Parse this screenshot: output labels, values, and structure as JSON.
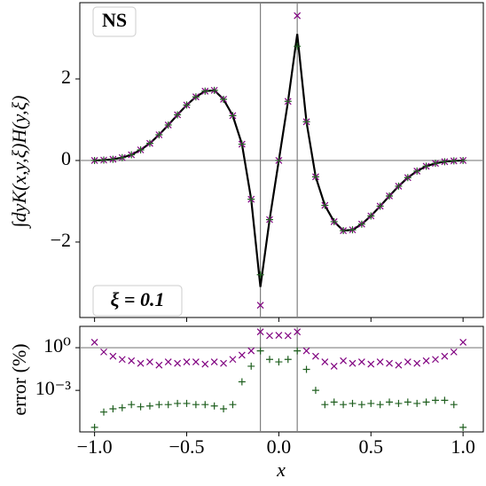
{
  "chart_data": [
    {
      "type": "line",
      "ylabel": "∫dyK(x,y,ξ)H(y,ξ)",
      "annotations": [
        "NS",
        "ξ = 0.1"
      ],
      "x": [
        -1,
        -0.95,
        -0.9,
        -0.85,
        -0.8,
        -0.75,
        -0.7,
        -0.65,
        -0.6,
        -0.55,
        -0.5,
        -0.45,
        -0.4,
        -0.35,
        -0.3,
        -0.25,
        -0.2,
        -0.15,
        -0.1,
        -0.05,
        0,
        0.05,
        0.1,
        0.15,
        0.2,
        0.25,
        0.3,
        0.35,
        0.4,
        0.45,
        0.5,
        0.55,
        0.6,
        0.65,
        0.7,
        0.75,
        0.8,
        0.85,
        0.9,
        0.95,
        1
      ],
      "series": [
        {
          "marker": "line",
          "color": "#000000",
          "values": [
            0,
            0.01,
            0.03,
            0.07,
            0.14,
            0.26,
            0.42,
            0.63,
            0.87,
            1.12,
            1.36,
            1.56,
            1.7,
            1.72,
            1.5,
            1.1,
            0.4,
            -0.95,
            -3.1,
            -1.45,
            0,
            1.45,
            3.1,
            0.95,
            -0.4,
            -1.1,
            -1.5,
            -1.72,
            -1.7,
            -1.56,
            -1.36,
            -1.12,
            -0.87,
            -0.63,
            -0.42,
            -0.26,
            -0.14,
            -0.07,
            -0.03,
            -0.01,
            0
          ]
        },
        {
          "marker": "x",
          "color": "#800080",
          "values": [
            0,
            0.01,
            0.03,
            0.07,
            0.14,
            0.26,
            0.42,
            0.63,
            0.87,
            1.12,
            1.36,
            1.56,
            1.7,
            1.72,
            1.5,
            1.1,
            0.4,
            -0.95,
            -3.55,
            -1.45,
            0,
            1.45,
            3.55,
            0.95,
            -0.4,
            -1.1,
            -1.5,
            -1.72,
            -1.7,
            -1.56,
            -1.36,
            -1.12,
            -0.87,
            -0.63,
            -0.42,
            -0.26,
            -0.14,
            -0.07,
            -0.03,
            -0.01,
            0
          ]
        },
        {
          "marker": "+",
          "color": "#1f5f1f",
          "values": [
            0,
            0.01,
            0.03,
            0.07,
            0.14,
            0.26,
            0.42,
            0.63,
            0.87,
            1.12,
            1.36,
            1.56,
            1.7,
            1.72,
            1.5,
            1.1,
            0.4,
            -0.95,
            -2.8,
            -1.45,
            0,
            1.45,
            2.8,
            0.95,
            -0.4,
            -1.1,
            -1.5,
            -1.72,
            -1.7,
            -1.56,
            -1.36,
            -1.12,
            -0.87,
            -0.63,
            -0.42,
            -0.26,
            -0.14,
            -0.07,
            -0.03,
            -0.01,
            0
          ]
        }
      ],
      "xlim": [
        -1.08,
        1.11
      ],
      "ylim": [
        -3.85,
        3.87
      ],
      "yticks": [
        {
          "value": -2,
          "label": "−2"
        },
        0,
        2
      ],
      "hlines": [
        0
      ],
      "vlines": [
        -0.1,
        0.1
      ],
      "ref_color": "#808080"
    },
    {
      "type": "scatter",
      "xlabel": "x",
      "ylabel": "error (%)",
      "log_y": true,
      "x": [
        -1,
        -0.95,
        -0.9,
        -0.85,
        -0.8,
        -0.75,
        -0.7,
        -0.65,
        -0.6,
        -0.55,
        -0.5,
        -0.45,
        -0.4,
        -0.35,
        -0.3,
        -0.25,
        -0.2,
        -0.15,
        -0.1,
        -0.05,
        0,
        0.05,
        0.1,
        0.15,
        0.2,
        0.25,
        0.3,
        0.35,
        0.4,
        0.45,
        0.5,
        0.55,
        0.6,
        0.65,
        0.7,
        0.75,
        0.8,
        0.85,
        0.9,
        0.95,
        1
      ],
      "series": [
        {
          "marker": "x",
          "color": "#800080",
          "values": [
            2.4,
            0.5,
            0.25,
            0.15,
            0.12,
            0.08,
            0.1,
            0.06,
            0.1,
            0.08,
            0.1,
            0.1,
            0.07,
            0.1,
            0.08,
            0.15,
            0.3,
            0.6,
            13,
            7,
            7.5,
            7,
            13,
            0.6,
            0.25,
            0.1,
            0.05,
            0.12,
            0.08,
            0.1,
            0.07,
            0.1,
            0.08,
            0.06,
            0.1,
            0.08,
            0.12,
            0.15,
            0.25,
            0.5,
            2.4
          ]
        },
        {
          "marker": "+",
          "color": "#1f5f1f",
          "values": [
            2.5e-06,
            3e-05,
            5e-05,
            6e-05,
            0.0001,
            7e-05,
            8e-05,
            0.0001,
            0.0001,
            0.00012,
            0.00012,
            0.0001,
            0.0001,
            8e-05,
            5e-05,
            0.0001,
            0.004,
            0.05,
            0.6,
            0.15,
            0.1,
            0.15,
            0.6,
            0.03,
            0.001,
            0.0001,
            0.00015,
            0.0001,
            0.00012,
            0.0001,
            0.00012,
            0.0001,
            0.00015,
            0.00012,
            0.00015,
            0.00012,
            0.00015,
            0.0002,
            0.0002,
            0.0001,
            2.5e-06
          ]
        }
      ],
      "xlim": [
        -1.08,
        1.11
      ],
      "xticks": [
        {
          "value": -1,
          "label": "−1.0"
        },
        {
          "value": -0.5,
          "label": "−0.5"
        },
        {
          "value": 0,
          "label": "0.0"
        },
        {
          "value": 0.5,
          "label": "0.5"
        },
        {
          "value": 1,
          "label": "1.0"
        }
      ],
      "ylim": [
        1.2e-06,
        31.6
      ],
      "yticks": [
        {
          "value": 1,
          "label": "10⁰"
        },
        {
          "value": 0.001,
          "label": "10⁻³"
        }
      ],
      "hlines": [
        1
      ],
      "vlines": [
        -0.1,
        0.1
      ],
      "ref_color": "#808080"
    }
  ]
}
